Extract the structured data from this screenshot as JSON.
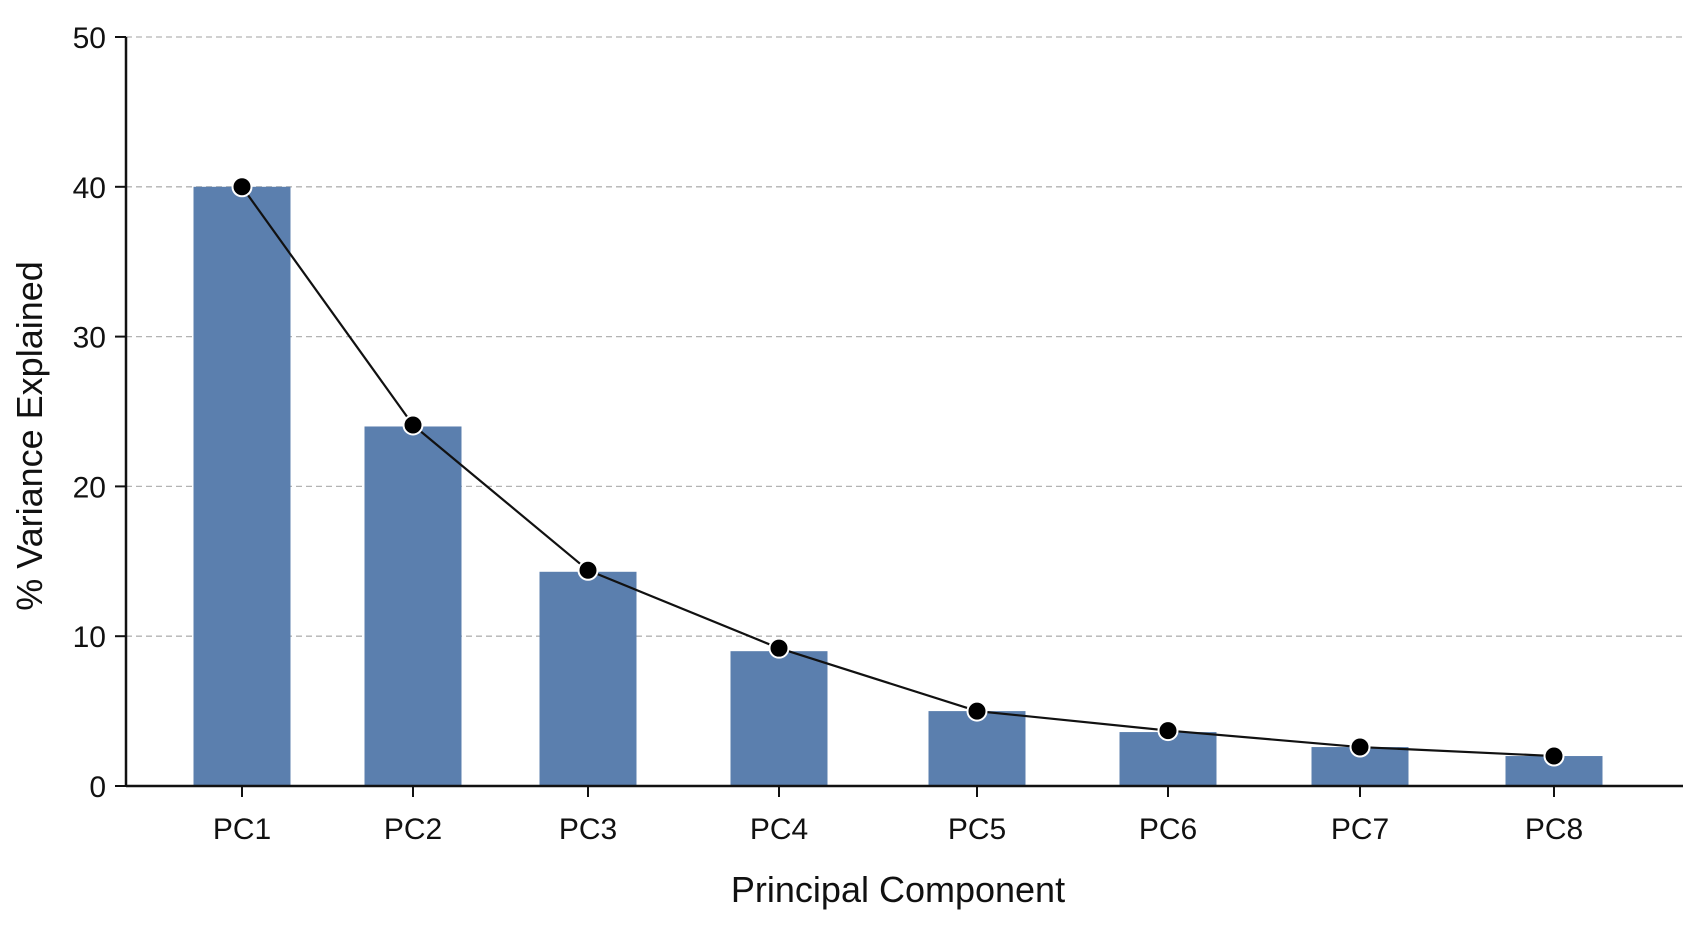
{
  "chart_data": {
    "type": "bar",
    "categories": [
      "PC1",
      "PC2",
      "PC3",
      "PC4",
      "PC5",
      "PC6",
      "PC7",
      "PC8"
    ],
    "series": [
      {
        "type": "bar",
        "values": [
          40.0,
          24.0,
          14.3,
          9.0,
          5.0,
          3.6,
          2.6,
          2.0
        ]
      },
      {
        "type": "line",
        "values": [
          40.0,
          24.1,
          14.4,
          9.2,
          5.0,
          3.7,
          2.6,
          2.0
        ]
      }
    ],
    "xlabel": "Principal Component",
    "ylabel": "% Variance Explained",
    "ylim": [
      0,
      50
    ],
    "yticks": [
      "0",
      "10",
      "20",
      "30",
      "40",
      "50"
    ],
    "grid": true,
    "colors": {
      "bar": "#5b7fae",
      "line": "#111111",
      "marker": "#000000",
      "grid": "#b3b3b3",
      "axis": "#111111"
    }
  }
}
